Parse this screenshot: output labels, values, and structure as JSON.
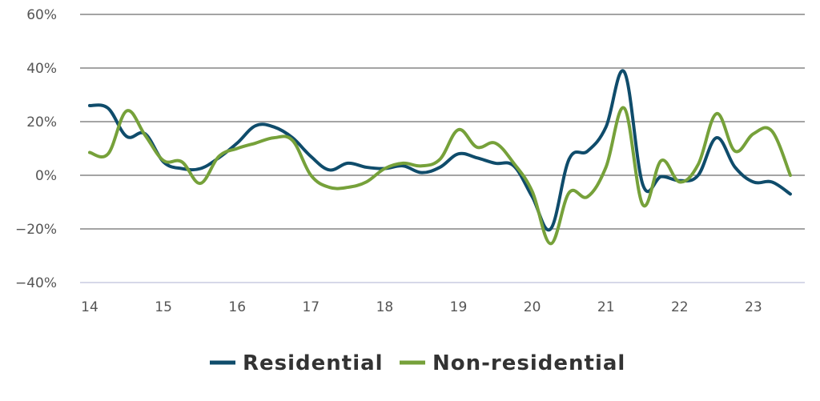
{
  "chart_data": {
    "type": "line",
    "title": "",
    "xlabel": "",
    "ylabel": "",
    "xlim": [
      14,
      23.5
    ],
    "ylim": [
      -40,
      60
    ],
    "x_ticks": [
      14,
      15,
      16,
      17,
      18,
      19,
      20,
      21,
      22,
      23
    ],
    "x_tick_labels": [
      "14",
      "15",
      "16",
      "17",
      "18",
      "19",
      "20",
      "21",
      "22",
      "23"
    ],
    "y_ticks": [
      -40,
      -20,
      0,
      20,
      40,
      60
    ],
    "y_tick_labels": [
      "−40%",
      "−20%",
      "0%",
      "20%",
      "40%",
      "60%"
    ],
    "grid": true,
    "legend_position": "bottom-center",
    "series": [
      {
        "name": "Residential",
        "color": "#0f4c6b",
        "x": [
          14,
          14.25,
          14.5,
          14.75,
          15,
          15.25,
          15.5,
          15.75,
          16,
          16.25,
          16.5,
          16.75,
          17,
          17.25,
          17.5,
          17.75,
          18,
          18.25,
          18.5,
          18.75,
          19,
          19.25,
          19.5,
          19.75,
          20,
          20.25,
          20.5,
          20.75,
          21,
          21.25,
          21.5,
          21.75,
          22,
          22.25,
          22.5,
          22.75,
          23,
          23.25,
          23.5
        ],
        "values": [
          26,
          25,
          14.5,
          15.5,
          5,
          2.5,
          2.5,
          6.5,
          12,
          18.5,
          18,
          14,
          7,
          2,
          4.5,
          3,
          2.5,
          3.5,
          1,
          3,
          8,
          6.5,
          4.5,
          3.5,
          -8,
          -20,
          6,
          9,
          18,
          38.5,
          -3.5,
          -0.5,
          -2,
          0,
          14,
          3,
          -2.5,
          -2.5,
          -7
        ]
      },
      {
        "name": "Non-residential",
        "color": "#76a13a",
        "x": [
          14,
          14.25,
          14.5,
          14.75,
          15,
          15.25,
          15.5,
          15.75,
          16,
          16.25,
          16.5,
          16.75,
          17,
          17.25,
          17.5,
          17.75,
          18,
          18.25,
          18.5,
          18.75,
          19,
          19.25,
          19.5,
          19.75,
          20,
          20.25,
          20.5,
          20.75,
          21,
          21.25,
          21.5,
          21.75,
          22,
          22.25,
          22.5,
          22.75,
          23,
          23.25,
          23.5
        ],
        "values": [
          8.5,
          8,
          24,
          15,
          5.5,
          5,
          -3,
          7,
          10,
          12,
          14,
          13,
          0,
          -4.5,
          -4.5,
          -2.5,
          2.5,
          4.5,
          3.5,
          6,
          17,
          10.5,
          12,
          4.5,
          -6,
          -25.5,
          -6.5,
          -8,
          3,
          25,
          -11,
          5.5,
          -2.5,
          4,
          23,
          9,
          15.5,
          16.5,
          0
        ]
      }
    ]
  }
}
